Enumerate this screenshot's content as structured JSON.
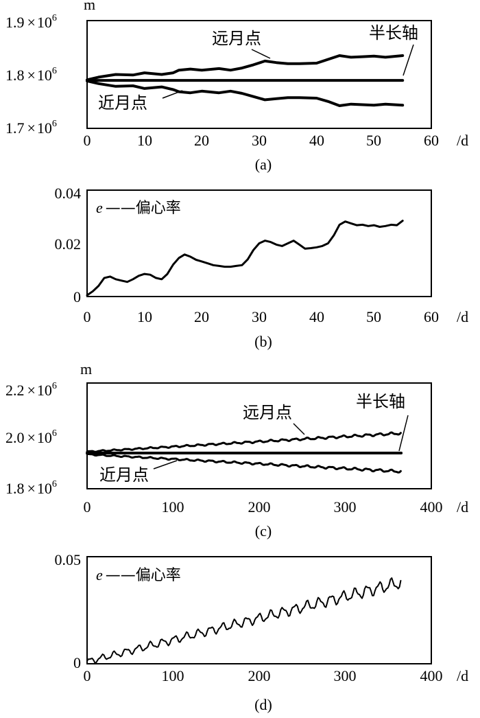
{
  "chart_data": [
    {
      "panel": "a",
      "type": "line",
      "caption": "(a)",
      "ylabel": "m",
      "xunit": "/d",
      "xlim": [
        0,
        60
      ],
      "ylim": [
        1700000.0,
        1900000.0
      ],
      "xticks": [
        "0",
        "10",
        "20",
        "30",
        "40",
        "50",
        "60"
      ],
      "yticks": [
        {
          "mant": "1.9",
          "times": "×",
          "base": "10",
          "exp": "6"
        },
        {
          "mant": "1.8",
          "times": "×",
          "base": "10",
          "exp": "6"
        },
        {
          "mant": "1.7",
          "times": "×",
          "base": "10",
          "exp": "6"
        }
      ],
      "annotations": [
        "远月点",
        "半长轴",
        "近月点"
      ],
      "series": [
        {
          "name": "远月点",
          "x": [
            0,
            2,
            5,
            8,
            10,
            13,
            15,
            16,
            18,
            20,
            23,
            25,
            27,
            29,
            31,
            33,
            35,
            37,
            40,
            42,
            44,
            46,
            48,
            50,
            52,
            55
          ],
          "y": [
            1790000,
            1795000,
            1800000,
            1799000,
            1803000,
            1800000,
            1803000,
            1808000,
            1810000,
            1808000,
            1811000,
            1808000,
            1812000,
            1818000,
            1825000,
            1822000,
            1820000,
            1820000,
            1821000,
            1828000,
            1835000,
            1832000,
            1833000,
            1834000,
            1832000,
            1835000
          ]
        },
        {
          "name": "半长轴",
          "x": [
            0,
            55
          ],
          "y": [
            1789000,
            1789000
          ]
        },
        {
          "name": "近月点",
          "x": [
            0,
            2,
            5,
            8,
            10,
            13,
            15,
            16,
            18,
            20,
            23,
            25,
            27,
            29,
            31,
            33,
            35,
            37,
            40,
            42,
            44,
            46,
            48,
            50,
            52,
            55
          ],
          "y": [
            1788000,
            1783000,
            1778000,
            1779000,
            1774000,
            1777000,
            1772000,
            1768000,
            1766000,
            1769000,
            1766000,
            1769000,
            1765000,
            1759000,
            1753000,
            1755000,
            1757000,
            1757000,
            1756000,
            1750000,
            1742000,
            1745000,
            1744000,
            1743000,
            1745000,
            1743000
          ]
        }
      ]
    },
    {
      "panel": "b",
      "type": "line",
      "caption": "(b)",
      "xunit": "/d",
      "xlim": [
        0,
        60
      ],
      "ylim": [
        0,
        0.04
      ],
      "xticks": [
        "0",
        "10",
        "20",
        "30",
        "40",
        "50",
        "60"
      ],
      "yticks": [
        "0.04",
        "0.02",
        "0"
      ],
      "legend_symbol": "e",
      "legend_dash": "——",
      "legend_text": "偏心率",
      "series": [
        {
          "name": "e",
          "x": [
            0,
            1,
            2,
            3,
            4,
            5,
            6,
            7,
            8,
            9,
            10,
            11,
            12,
            13,
            14,
            15,
            16,
            17,
            18,
            19,
            20,
            21,
            22,
            23,
            24,
            25,
            26,
            27,
            28,
            29,
            30,
            31,
            32,
            33,
            34,
            35,
            36,
            37,
            38,
            39,
            40,
            41,
            42,
            43,
            44,
            45,
            46,
            47,
            48,
            49,
            50,
            51,
            52,
            53,
            54,
            55
          ],
          "y": [
            0.0005,
            0.002,
            0.004,
            0.007,
            0.0075,
            0.0065,
            0.006,
            0.0055,
            0.0065,
            0.0078,
            0.0085,
            0.0082,
            0.007,
            0.0065,
            0.0085,
            0.012,
            0.0145,
            0.0158,
            0.015,
            0.0138,
            0.0132,
            0.0125,
            0.0118,
            0.0115,
            0.0112,
            0.0112,
            0.0115,
            0.0118,
            0.014,
            0.0175,
            0.02,
            0.021,
            0.0205,
            0.0195,
            0.019,
            0.02,
            0.021,
            0.0195,
            0.018,
            0.0182,
            0.0185,
            0.019,
            0.02,
            0.023,
            0.027,
            0.0282,
            0.0275,
            0.0268,
            0.027,
            0.0265,
            0.0268,
            0.0262,
            0.0265,
            0.027,
            0.0268,
            0.0285
          ]
        }
      ]
    },
    {
      "panel": "c",
      "type": "line",
      "caption": "(c)",
      "ylabel": "m",
      "xunit": "/d",
      "xlim": [
        0,
        400
      ],
      "ylim": [
        1800000.0,
        2200000.0
      ],
      "xticks": [
        "0",
        "100",
        "200",
        "300",
        "400"
      ],
      "yticks": [
        {
          "mant": "2.2",
          "times": "×",
          "base": "10",
          "exp": "6"
        },
        {
          "mant": "2.0",
          "times": "×",
          "base": "10",
          "exp": "6"
        },
        {
          "mant": "1.8",
          "times": "×",
          "base": "10",
          "exp": "6"
        }
      ],
      "annotations": [
        "远月点",
        "半长轴",
        "近月点"
      ],
      "series": [
        {
          "name": "远月点",
          "x": [
            0,
            365
          ],
          "y": [
            1940000,
            2010000
          ],
          "oscillation_amplitude": 4000,
          "oscillation_period_days": 14
        },
        {
          "name": "半长轴",
          "x": [
            0,
            365
          ],
          "y": [
            1935000,
            1935000
          ]
        },
        {
          "name": "近月点",
          "x": [
            0,
            365
          ],
          "y": [
            1930000,
            1865000
          ],
          "oscillation_amplitude": 4000,
          "oscillation_period_days": 14
        }
      ]
    },
    {
      "panel": "d",
      "type": "line",
      "caption": "(d)",
      "xunit": "/d",
      "xlim": [
        0,
        400
      ],
      "ylim": [
        0,
        0.05
      ],
      "xticks": [
        "0",
        "100",
        "200",
        "300",
        "400"
      ],
      "yticks": [
        "0.05",
        "0"
      ],
      "legend_symbol": "e",
      "legend_dash": "——",
      "legend_text": "偏心率",
      "series": [
        {
          "name": "e",
          "x": [
            0,
            365
          ],
          "y": [
            0.001,
            0.038
          ],
          "oscillation_amplitude": 0.0025,
          "oscillation_period_days": 14
        }
      ]
    }
  ]
}
